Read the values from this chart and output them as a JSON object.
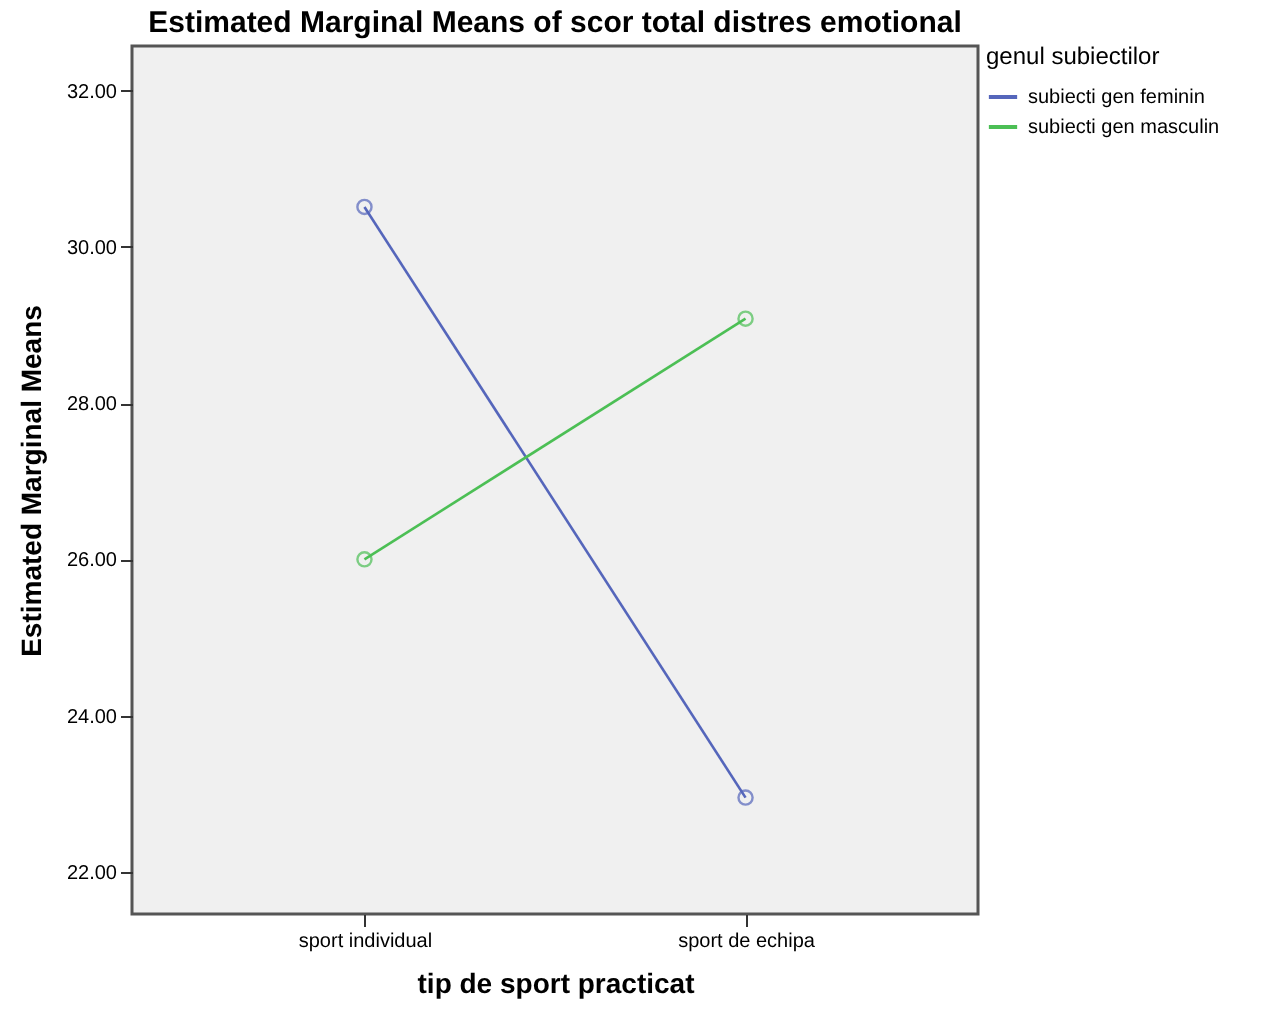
{
  "chart_data": {
    "type": "line",
    "title": "Estimated Marginal Means of scor total distres emotional",
    "xlabel": "tip de sport practicat",
    "ylabel": "Estimated Marginal Means",
    "legend_title": "genul subiectilor",
    "categories": [
      "sport individual",
      "sport de echipa"
    ],
    "series": [
      {
        "name": "subiecti gen feminin",
        "color": "#5566bb",
        "values": [
          30.51,
          22.95
        ]
      },
      {
        "name": "subiecti gen masculin",
        "color": "#4cbf55",
        "values": [
          26.0,
          29.08
        ]
      }
    ],
    "ylim": [
      21.46,
      32.57
    ],
    "yticks": [
      {
        "value": 22,
        "label": "22.00"
      },
      {
        "value": 24,
        "label": "24.00"
      },
      {
        "value": 26,
        "label": "26.00"
      },
      {
        "value": 28,
        "label": "28.00"
      },
      {
        "value": 30,
        "label": "30.00"
      },
      {
        "value": 32,
        "label": "32.00"
      }
    ],
    "grid": false,
    "legend": "top right",
    "marker": "circle",
    "line_style": "solid"
  }
}
